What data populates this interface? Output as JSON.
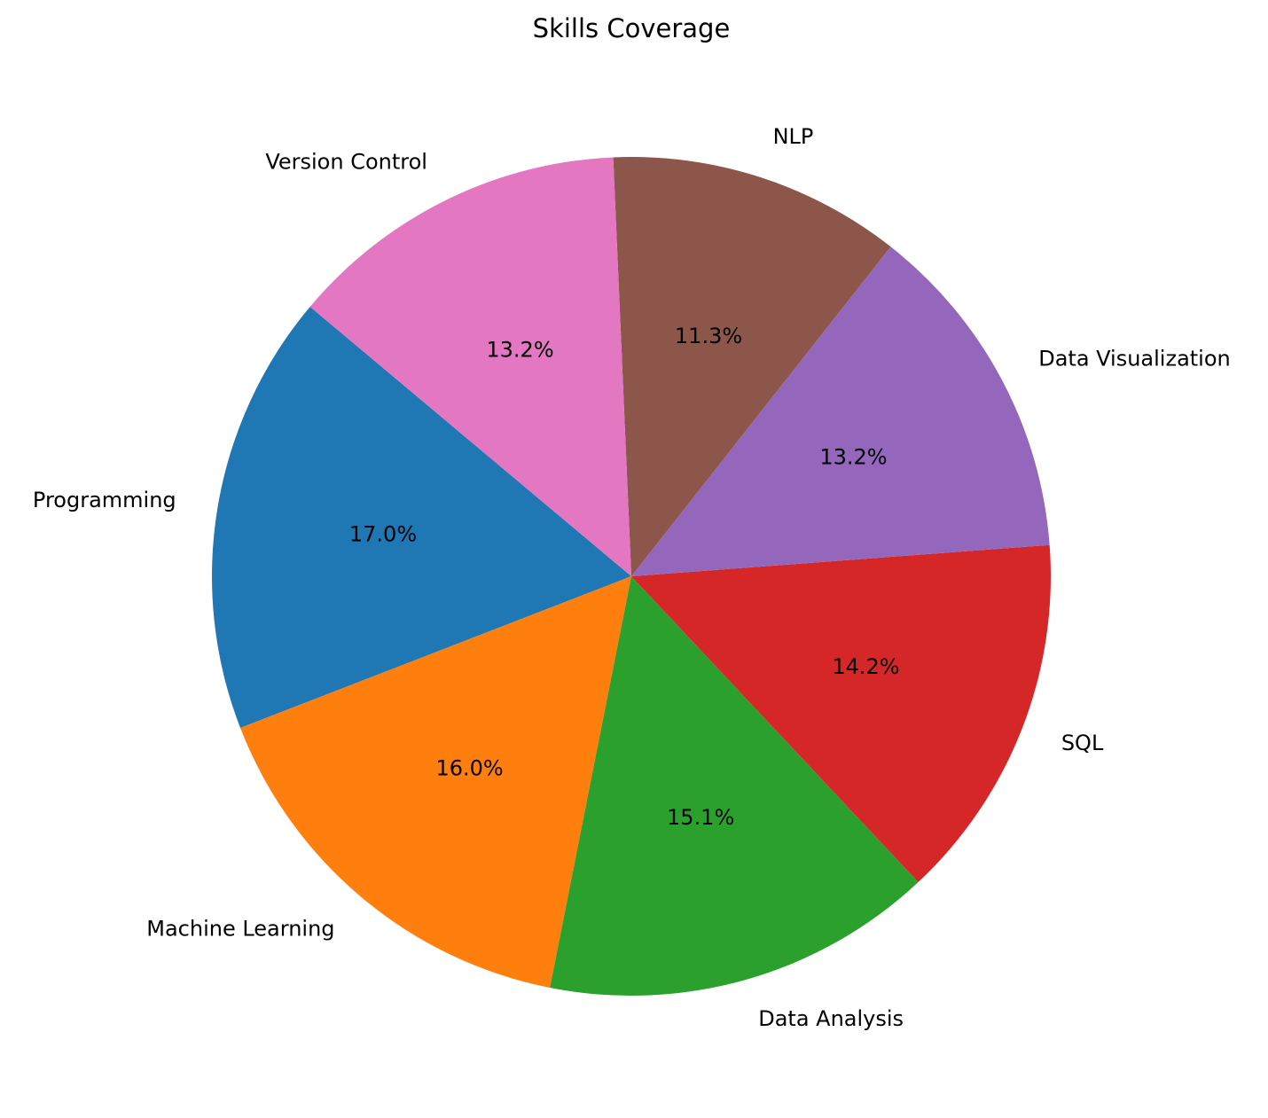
{
  "chart_data": {
    "type": "pie",
    "title": "Skills Coverage",
    "start_angle_deg": 140,
    "direction": "counterclockwise",
    "slices": [
      {
        "label": "Programming",
        "value": 17.0,
        "pct_label": "17.0%",
        "color": "#1f77b4"
      },
      {
        "label": "Machine Learning",
        "value": 16.0,
        "pct_label": "16.0%",
        "color": "#ff7f0e"
      },
      {
        "label": "Data Analysis",
        "value": 15.1,
        "pct_label": "15.1%",
        "color": "#2ca02c"
      },
      {
        "label": "SQL",
        "value": 14.2,
        "pct_label": "14.2%",
        "color": "#d62728"
      },
      {
        "label": "Data Visualization",
        "value": 13.2,
        "pct_label": "13.2%",
        "color": "#9467bd"
      },
      {
        "label": "NLP",
        "value": 11.3,
        "pct_label": "11.3%",
        "color": "#8c564b"
      },
      {
        "label": "Version Control",
        "value": 13.2,
        "pct_label": "13.2%",
        "color": "#e377c2"
      }
    ]
  }
}
